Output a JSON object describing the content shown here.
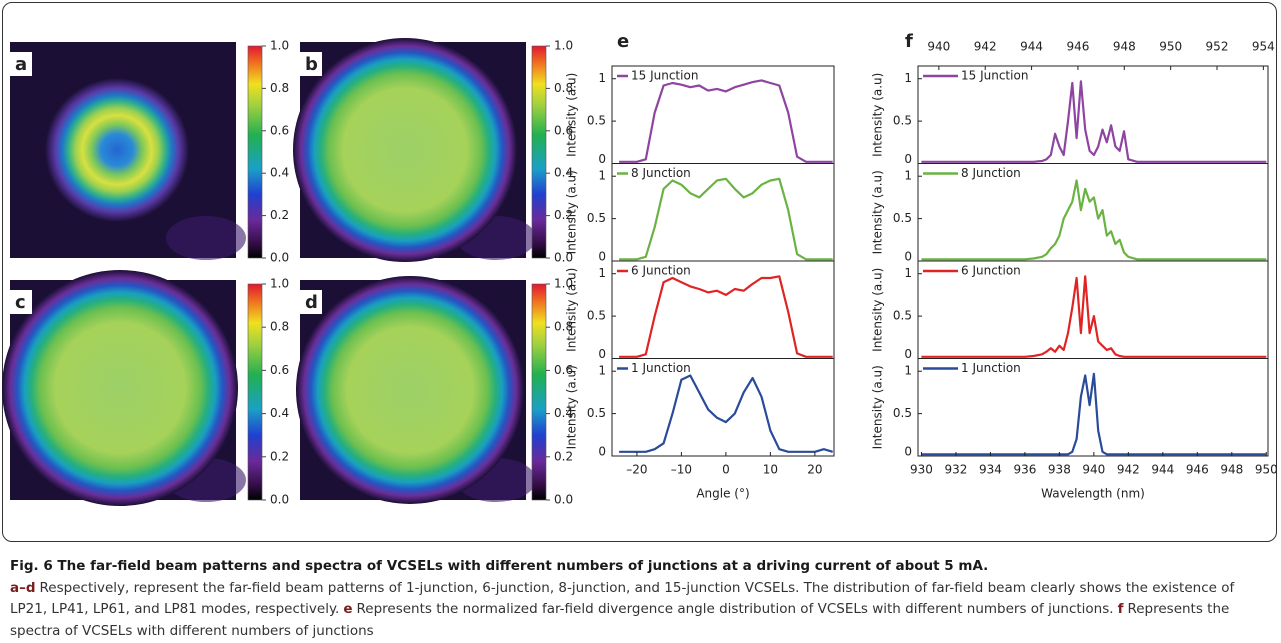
{
  "panels": [
    {
      "label": "a"
    },
    {
      "label": "b"
    },
    {
      "label": "c"
    },
    {
      "label": "d"
    }
  ],
  "colorbar": {
    "lim": [
      0,
      1
    ],
    "ticks": [
      {
        "value": 0,
        "label": "0.0"
      },
      0.2,
      0.4,
      0.6,
      0.8,
      {
        "value": 1,
        "label": "1.0"
      }
    ]
  },
  "chart_data": [
    {
      "type": "line",
      "label": "e",
      "xlabel": "Angle (°)",
      "ylabel": "Intensity (a.u)",
      "xlim": [
        -25.6,
        24.3
      ],
      "xticks": [
        {
          "value": -20,
          "label": "–20"
        },
        {
          "value": -10,
          "label": "–10"
        },
        0,
        10,
        20
      ],
      "ylim": [
        0,
        1.15
      ],
      "yticks": [
        0,
        0.5,
        1
      ],
      "x": [
        -24,
        -22,
        -20,
        -18,
        -16,
        -14,
        -12,
        -10,
        -8,
        -6,
        -4,
        -2,
        0,
        2,
        4,
        6,
        8,
        10,
        12,
        14,
        16,
        18,
        20,
        22,
        24
      ],
      "series": [
        {
          "name": "15 Junction",
          "color": "#8e44a0",
          "values": [
            0.02,
            0.02,
            0.02,
            0.05,
            0.6,
            0.92,
            0.95,
            0.93,
            0.9,
            0.92,
            0.86,
            0.88,
            0.85,
            0.9,
            0.93,
            0.96,
            0.98,
            0.95,
            0.92,
            0.6,
            0.08,
            0.02,
            0.02,
            0.02,
            0.02
          ]
        },
        {
          "name": "8 Junction",
          "color": "#6ab342",
          "values": [
            0.02,
            0.02,
            0.02,
            0.05,
            0.4,
            0.85,
            0.95,
            0.9,
            0.8,
            0.75,
            0.85,
            0.95,
            0.97,
            0.85,
            0.75,
            0.8,
            0.9,
            0.95,
            0.97,
            0.6,
            0.08,
            0.02,
            0.02,
            0.02,
            0.02
          ]
        },
        {
          "name": "6 Junction",
          "color": "#e02424",
          "values": [
            0.02,
            0.02,
            0.02,
            0.05,
            0.5,
            0.9,
            0.95,
            0.9,
            0.85,
            0.82,
            0.78,
            0.8,
            0.75,
            0.82,
            0.8,
            0.88,
            0.95,
            0.95,
            0.97,
            0.55,
            0.06,
            0.02,
            0.02,
            0.02,
            0.02
          ]
        },
        {
          "name": "1 Junction",
          "color": "#2a4a9a",
          "values": [
            0.05,
            0.05,
            0.05,
            0.05,
            0.08,
            0.15,
            0.5,
            0.9,
            0.95,
            0.75,
            0.55,
            0.45,
            0.4,
            0.5,
            0.75,
            0.92,
            0.7,
            0.3,
            0.08,
            0.05,
            0.05,
            0.05,
            0.05,
            0.08,
            0.05
          ]
        }
      ]
    },
    {
      "type": "line",
      "label": "f",
      "xlabel": "Wavelength (nm)",
      "ylabel": "Intensity (a.u)",
      "xlim": [
        929.8,
        950.1
      ],
      "xticks": [
        930,
        932,
        934,
        936,
        938,
        940,
        942,
        944,
        946,
        948,
        950
      ],
      "x2lim": [
        939.1,
        954.2
      ],
      "x2ticks": [
        940,
        942,
        944,
        946,
        948,
        950,
        952,
        954
      ],
      "ylim": [
        0,
        1.15
      ],
      "yticks": [
        0,
        0.5,
        1
      ],
      "x": [
        930,
        936,
        936.5,
        937,
        937.25,
        937.5,
        937.75,
        938,
        938.25,
        938.5,
        938.75,
        939,
        939.25,
        939.5,
        939.75,
        940,
        940.25,
        940.5,
        940.75,
        941,
        941.25,
        941.5,
        941.75,
        942,
        942.5,
        943,
        944,
        950
      ],
      "series": [
        {
          "name": "15 Junction",
          "color": "#8e44a0",
          "values": [
            0.02,
            0.02,
            0.02,
            0.03,
            0.05,
            0.1,
            0.35,
            0.2,
            0.1,
            0.5,
            0.95,
            0.3,
            0.97,
            0.4,
            0.15,
            0.1,
            0.2,
            0.4,
            0.25,
            0.45,
            0.2,
            0.15,
            0.38,
            0.05,
            0.02,
            0.02,
            0.02,
            0.02
          ]
        },
        {
          "name": "8 Junction",
          "color": "#6ab342",
          "values": [
            0.02,
            0.02,
            0.03,
            0.05,
            0.08,
            0.15,
            0.2,
            0.3,
            0.5,
            0.6,
            0.7,
            0.95,
            0.6,
            0.85,
            0.7,
            0.75,
            0.5,
            0.6,
            0.3,
            0.35,
            0.2,
            0.25,
            0.1,
            0.05,
            0.02,
            0.02,
            0.02,
            0.02
          ]
        },
        {
          "name": "6 Junction",
          "color": "#e02424",
          "values": [
            0.02,
            0.02,
            0.03,
            0.05,
            0.08,
            0.12,
            0.08,
            0.15,
            0.1,
            0.3,
            0.6,
            0.95,
            0.3,
            0.97,
            0.3,
            0.5,
            0.2,
            0.15,
            0.1,
            0.12,
            0.05,
            0.03,
            0.02,
            0.02,
            0.02,
            0.02,
            0.02,
            0.02
          ]
        },
        {
          "name": "1 Junction",
          "color": "#2a4a9a",
          "values": [
            0.02,
            0.02,
            0.02,
            0.02,
            0.02,
            0.02,
            0.02,
            0.02,
            0.02,
            0.02,
            0.05,
            0.2,
            0.7,
            0.95,
            0.6,
            0.97,
            0.3,
            0.05,
            0.02,
            0.02,
            0.02,
            0.02,
            0.02,
            0.02,
            0.02,
            0.02,
            0.02,
            0.02
          ]
        }
      ]
    }
  ],
  "caption": {
    "title": "Fig. 6 The far-field beam patterns and spectra of VCSELs with different numbers of junctions at a driving current of about 5 mA.",
    "body": [
      {
        "label": "a–d",
        "text": "Respectively, represent the far-field beam patterns of 1-junction, 6-junction, 8-junction, and 15-junction VCSELs. The distribution of far-field beam clearly shows the existence of LP21, LP41, LP61, and LP81 modes, respectively."
      },
      {
        "label": "e",
        "text": "Represents the normalized far-field divergence angle distribution of VCSELs with different numbers of junctions."
      },
      {
        "label": "f",
        "text": "Represents the spectra of VCSELs with different numbers of junctions"
      }
    ]
  }
}
